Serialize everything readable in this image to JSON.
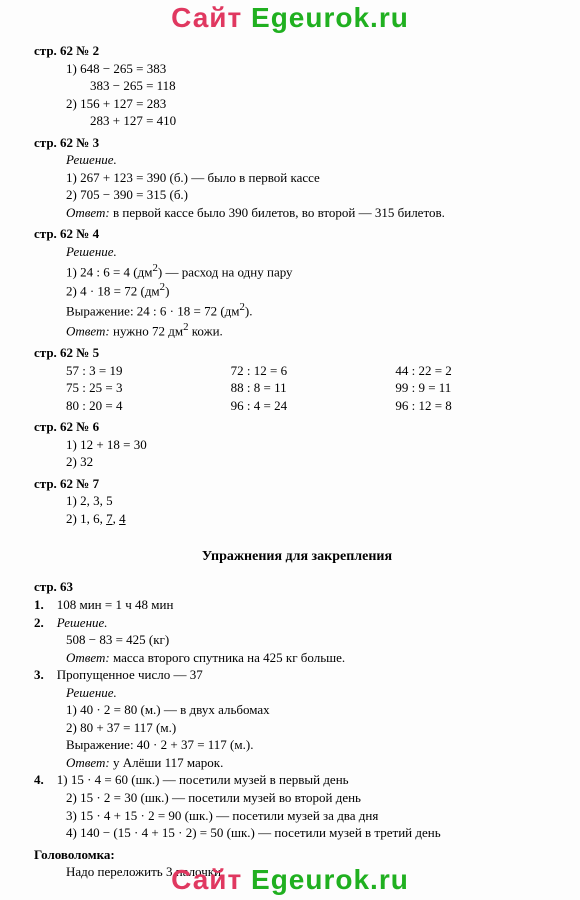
{
  "watermark": {
    "sait": "Сайт ",
    "ege": "Egeurok.ru"
  },
  "p2": {
    "header": "стр. 62 № 2",
    "l1": "1) 648 − 265 = 383",
    "l2": "383 − 265 = 118",
    "l3": "2) 156 + 127 = 283",
    "l4": "283 + 127 = 410"
  },
  "p3": {
    "header": "стр. 62 № 3",
    "sol": "Решение.",
    "l1": "1) 267 + 123 = 390 (б.) — было в первой кассе",
    "l2": "2) 705 − 390 = 315 (б.)",
    "ans_label": "Ответ:",
    "ans_text": " в первой кассе было 390 билетов, во второй — 315 билетов."
  },
  "p4": {
    "header": "стр. 62 № 4",
    "sol": "Решение.",
    "l1a": "1) 24 : 6 = 4 (дм",
    "sq": "2",
    "l1b": ") — расход на одну пару",
    "l2a": "2) 4 · 18 = 72 (дм",
    "l2b": ")",
    "l3a": "Выражение: 24 : 6 · 18 = 72 (дм",
    "l3b": ").",
    "ans_label": "Ответ:",
    "ans_text": " нужно 72 дм",
    "ans_text2": " кожи."
  },
  "p5": {
    "header": "стр. 62 № 5",
    "c1a": "57 : 3 = 19",
    "c1b": "75 : 25 = 3",
    "c1c": "80 : 20 = 4",
    "c2a": "72 : 12 = 6",
    "c2b": "88 : 8 = 11",
    "c2c": "96 : 4 = 24",
    "c3a": "44 : 22 = 2",
    "c3b": "99 : 9 = 11",
    "c3c": "96 : 12 = 8"
  },
  "p6": {
    "header": "стр. 62 № 6",
    "l1": "1) 12 + 18 = 30",
    "l2": "2) 32"
  },
  "p7": {
    "header": "стр. 62 № 7",
    "l1": "1) 2, 3, 5",
    "l2a": "2) 1, 6, ",
    "u1": "7",
    "sep": ", ",
    "u2": "4"
  },
  "section_title": "Упражнения для закрепления",
  "p63": {
    "header": "стр. 63",
    "n1": "1.",
    "n1v": "108 мин = 1 ч 48 мин",
    "n2": "2.",
    "n2sol": "Решение.",
    "n2l1": "508 − 83 = 425 (кг)",
    "n2ans_l": "Ответ:",
    "n2ans_t": " масса второго спутника на 425 кг больше.",
    "n3": "3.",
    "n3v": "Пропущенное число — 37",
    "n3sol": "Решение.",
    "n3l1": "1) 40 · 2 = 80 (м.) — в двух альбомах",
    "n3l2": "2) 80 + 37 = 117 (м.)",
    "n3l3": "Выражение: 40 · 2 + 37 = 117 (м.).",
    "n3ans_l": "Ответ:",
    "n3ans_t": " у Алёши 117 марок.",
    "n4": "4.",
    "n4l1": "1) 15 · 4 = 60 (шк.) — посетили музей в первый день",
    "n4l2": "2) 15 · 2 = 30 (шк.) — посетили музей во второй день",
    "n4l3": "3) 15 · 4 + 15 · 2 = 90 (шк.) — посетили музей за два дня",
    "n4l4": "4) 140 − (15 · 4 + 15 · 2) = 50 (шк.) — посетили музей в третий день",
    "puzzle": "Головоломка:",
    "puzv": "Надо переложить 3 палочки."
  }
}
